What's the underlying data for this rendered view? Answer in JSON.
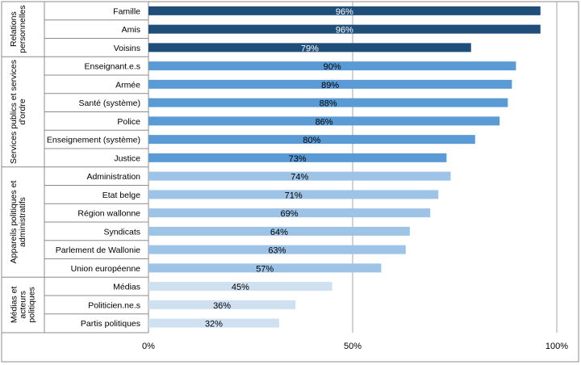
{
  "chart_data": {
    "type": "bar",
    "orientation": "horizontal",
    "grid": true,
    "xlim": [
      0,
      100
    ],
    "x_ticks": [
      "0%",
      "50%",
      "100%"
    ],
    "groups": [
      {
        "label": "Relations personnelles",
        "label_lines": [
          "Relations",
          "personnelles"
        ],
        "color": "#1f4e79",
        "label_color": "#ffffff",
        "bars": [
          {
            "category": "Famille",
            "value": 96,
            "label": "96%"
          },
          {
            "category": "Amis",
            "value": 96,
            "label": "96%"
          },
          {
            "category": "Voisins",
            "value": 79,
            "label": "79%"
          }
        ]
      },
      {
        "label": "Services publics et services d'ordre",
        "label_lines": [
          "Services publics et services",
          "d'ordre"
        ],
        "color": "#5b9bd5",
        "label_color": "#000000",
        "bars": [
          {
            "category": "Enseignant.e.s",
            "value": 90,
            "label": "90%"
          },
          {
            "category": "Armée",
            "value": 89,
            "label": "89%"
          },
          {
            "category": "Santé (système)",
            "value": 88,
            "label": "88%"
          },
          {
            "category": "Police",
            "value": 86,
            "label": "86%"
          },
          {
            "category": "Enseignement (système)",
            "value": 80,
            "label": "80%"
          },
          {
            "category": "Justice",
            "value": 73,
            "label": "73%"
          }
        ]
      },
      {
        "label": "Appareils politiques et administratifs",
        "label_lines": [
          "Appareils politiques et",
          "administratifs"
        ],
        "color": "#9dc3e6",
        "label_color": "#000000",
        "bars": [
          {
            "category": "Administration",
            "value": 74,
            "label": "74%"
          },
          {
            "category": "Etat belge",
            "value": 71,
            "label": "71%"
          },
          {
            "category": "Région wallonne",
            "value": 69,
            "label": "69%"
          },
          {
            "category": "Syndicats",
            "value": 64,
            "label": "64%"
          },
          {
            "category": "Parlement de Wallonie",
            "value": 63,
            "label": "63%"
          },
          {
            "category": "Union européenne",
            "value": 57,
            "label": "57%"
          }
        ]
      },
      {
        "label": "Médias et acteurs politiques",
        "label_lines": [
          "Médias et",
          "acteurs",
          "politiques"
        ],
        "color": "#cfe0f1",
        "label_color": "#000000",
        "bars": [
          {
            "category": "Médias",
            "value": 45,
            "label": "45%"
          },
          {
            "category": "Politicien.ne.s",
            "value": 36,
            "label": "36%"
          },
          {
            "category": "Partis politiques",
            "value": 32,
            "label": "32%"
          }
        ]
      }
    ]
  }
}
